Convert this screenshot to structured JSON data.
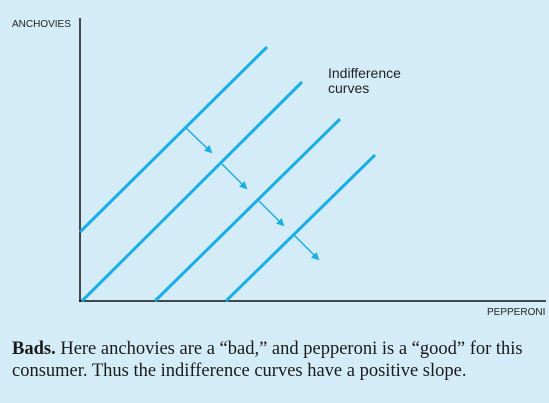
{
  "figure": {
    "y_axis_label": "ANCHOVIES",
    "x_axis_label": "PEPPERONI",
    "annotation_line1": "Indifference",
    "annotation_line2": "curves",
    "curve_count": 4,
    "colors": {
      "background": "#d4ecf7",
      "curve": "#19aee4",
      "axis": "#111111"
    },
    "arrow_direction": "down-right"
  },
  "caption": {
    "title": "Bads.",
    "text": "Here anchovies are a “bad,” and pepperoni is a “good” for this consumer. Thus the indifference curves have a positive slope."
  }
}
